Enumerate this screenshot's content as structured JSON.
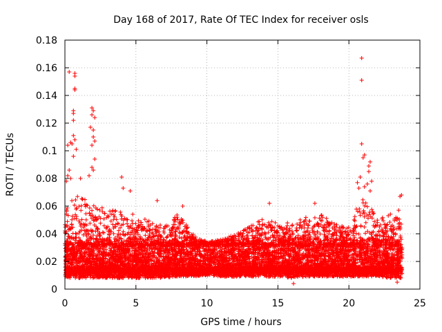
{
  "chart_data": {
    "type": "scatter",
    "title": "Day 168 of 2017, Rate Of TEC Index for receiver osls",
    "xlabel": "GPS time / hours",
    "ylabel": "ROTI / TECUs",
    "xlim": [
      0,
      25
    ],
    "ylim": [
      0,
      0.18
    ],
    "xticks": [
      0,
      5,
      10,
      15,
      20,
      25
    ],
    "xtick_labels": [
      "0",
      "5",
      "10",
      "15",
      "20",
      "25"
    ],
    "yticks": [
      0,
      0.02,
      0.04,
      0.06,
      0.08,
      0.1,
      0.12,
      0.14,
      0.16,
      0.18
    ],
    "ytick_labels": [
      "0",
      "0.02",
      "0.04",
      "0.06",
      "0.08",
      "0.1",
      "0.12",
      "0.14",
      "0.16",
      "0.18"
    ],
    "grid": true,
    "marker": "+",
    "color": "#ff0000",
    "data_range_hours": [
      0,
      23.75
    ],
    "baseline_typical": [
      0.012,
      0.032
    ],
    "notable_points": [
      {
        "x": 0.3,
        "y": 0.157
      },
      {
        "x": 0.7,
        "y": 0.156
      },
      {
        "x": 0.7,
        "y": 0.154
      },
      {
        "x": 0.7,
        "y": 0.145
      },
      {
        "x": 0.7,
        "y": 0.144
      },
      {
        "x": 0.6,
        "y": 0.129
      },
      {
        "x": 0.6,
        "y": 0.127
      },
      {
        "x": 0.6,
        "y": 0.122
      },
      {
        "x": 0.6,
        "y": 0.111
      },
      {
        "x": 0.7,
        "y": 0.108
      },
      {
        "x": 0.4,
        "y": 0.106
      },
      {
        "x": 0.5,
        "y": 0.105
      },
      {
        "x": 0.2,
        "y": 0.104
      },
      {
        "x": 0.8,
        "y": 0.101
      },
      {
        "x": 0.6,
        "y": 0.096
      },
      {
        "x": 0.2,
        "y": 0.082
      },
      {
        "x": 0.4,
        "y": 0.08
      },
      {
        "x": 0.1,
        "y": 0.078
      },
      {
        "x": 0.3,
        "y": 0.086
      },
      {
        "x": 1.1,
        "y": 0.08
      },
      {
        "x": 1.9,
        "y": 0.131
      },
      {
        "x": 2.0,
        "y": 0.129
      },
      {
        "x": 1.9,
        "y": 0.126
      },
      {
        "x": 2.1,
        "y": 0.124
      },
      {
        "x": 1.8,
        "y": 0.117
      },
      {
        "x": 2.0,
        "y": 0.115
      },
      {
        "x": 2.0,
        "y": 0.11
      },
      {
        "x": 2.1,
        "y": 0.107
      },
      {
        "x": 1.9,
        "y": 0.104
      },
      {
        "x": 2.1,
        "y": 0.094
      },
      {
        "x": 1.9,
        "y": 0.088
      },
      {
        "x": 2.0,
        "y": 0.086
      },
      {
        "x": 1.7,
        "y": 0.082
      },
      {
        "x": 4.0,
        "y": 0.081
      },
      {
        "x": 4.1,
        "y": 0.073
      },
      {
        "x": 4.6,
        "y": 0.071
      },
      {
        "x": 6.5,
        "y": 0.064
      },
      {
        "x": 8.3,
        "y": 0.06
      },
      {
        "x": 14.4,
        "y": 0.062
      },
      {
        "x": 17.6,
        "y": 0.062
      },
      {
        "x": 20.9,
        "y": 0.167
      },
      {
        "x": 20.9,
        "y": 0.151
      },
      {
        "x": 20.9,
        "y": 0.105
      },
      {
        "x": 21.1,
        "y": 0.097
      },
      {
        "x": 21.0,
        "y": 0.095
      },
      {
        "x": 21.5,
        "y": 0.092
      },
      {
        "x": 21.4,
        "y": 0.089
      },
      {
        "x": 21.4,
        "y": 0.085
      },
      {
        "x": 20.8,
        "y": 0.081
      },
      {
        "x": 21.6,
        "y": 0.078
      },
      {
        "x": 20.6,
        "y": 0.077
      },
      {
        "x": 21.3,
        "y": 0.076
      },
      {
        "x": 21.1,
        "y": 0.074
      },
      {
        "x": 20.7,
        "y": 0.073
      },
      {
        "x": 21.5,
        "y": 0.071
      },
      {
        "x": 23.7,
        "y": 0.068
      },
      {
        "x": 23.6,
        "y": 0.067
      },
      {
        "x": 23.5,
        "y": 0.057
      },
      {
        "x": 23.4,
        "y": 0.005
      },
      {
        "x": 16.1,
        "y": 0.004
      }
    ],
    "hourly_envelope": [
      {
        "x": 0,
        "lo": 0.008,
        "hi": 0.06
      },
      {
        "x": 1,
        "lo": 0.008,
        "hi": 0.068
      },
      {
        "x": 2,
        "lo": 0.008,
        "hi": 0.062
      },
      {
        "x": 3,
        "lo": 0.008,
        "hi": 0.058
      },
      {
        "x": 4,
        "lo": 0.008,
        "hi": 0.056
      },
      {
        "x": 5,
        "lo": 0.008,
        "hi": 0.054
      },
      {
        "x": 6,
        "lo": 0.008,
        "hi": 0.052
      },
      {
        "x": 7,
        "lo": 0.008,
        "hi": 0.045
      },
      {
        "x": 8,
        "lo": 0.009,
        "hi": 0.055
      },
      {
        "x": 9,
        "lo": 0.009,
        "hi": 0.04
      },
      {
        "x": 10,
        "lo": 0.01,
        "hi": 0.034
      },
      {
        "x": 11,
        "lo": 0.009,
        "hi": 0.036
      },
      {
        "x": 12,
        "lo": 0.009,
        "hi": 0.04
      },
      {
        "x": 13,
        "lo": 0.009,
        "hi": 0.045
      },
      {
        "x": 14,
        "lo": 0.009,
        "hi": 0.052
      },
      {
        "x": 15,
        "lo": 0.009,
        "hi": 0.048
      },
      {
        "x": 16,
        "lo": 0.008,
        "hi": 0.048
      },
      {
        "x": 17,
        "lo": 0.009,
        "hi": 0.052
      },
      {
        "x": 18,
        "lo": 0.009,
        "hi": 0.054
      },
      {
        "x": 19,
        "lo": 0.009,
        "hi": 0.048
      },
      {
        "x": 20,
        "lo": 0.009,
        "hi": 0.045
      },
      {
        "x": 21,
        "lo": 0.009,
        "hi": 0.07
      },
      {
        "x": 22,
        "lo": 0.009,
        "hi": 0.05
      },
      {
        "x": 23,
        "lo": 0.008,
        "hi": 0.055
      },
      {
        "x": 23.75,
        "lo": 0.008,
        "hi": 0.05
      }
    ]
  }
}
